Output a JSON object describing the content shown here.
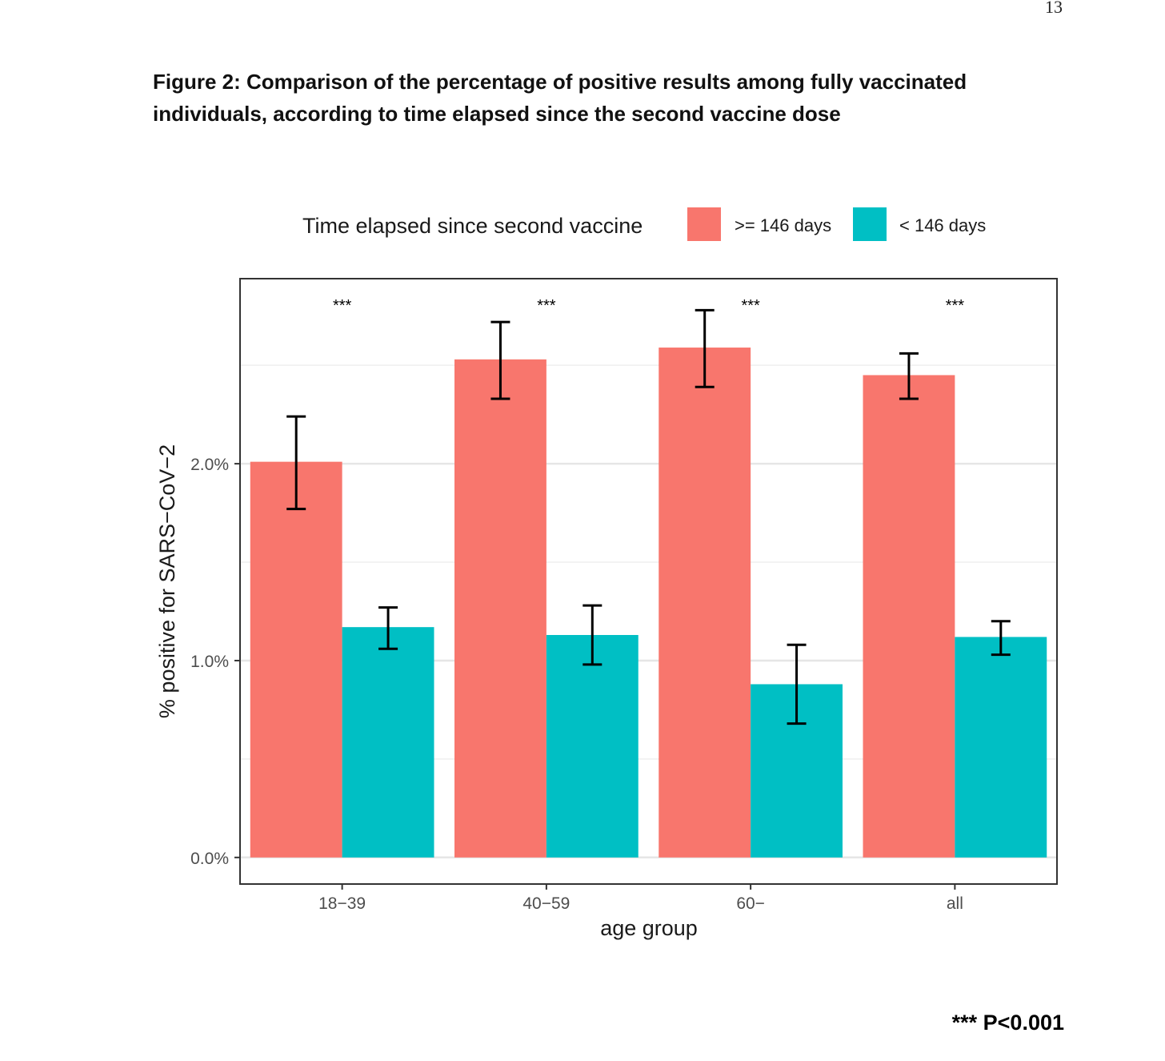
{
  "page": {
    "number": "13"
  },
  "figure": {
    "title": "Figure 2: Comparison of the percentage of positive results among fully vaccinated individuals, according to time elapsed since the second vaccine dose",
    "footnote": "*** P<0.001"
  },
  "chart_data": {
    "type": "bar",
    "title": "",
    "xlabel": "age group",
    "ylabel": "% positive for SARS−CoV−2",
    "categories": [
      "18−39",
      "40−59",
      "60−",
      "all"
    ],
    "legend": {
      "title": "Time elapsed since second vaccine",
      "position": "top"
    },
    "series": [
      {
        "name": ">= 146 days",
        "color": "#F8766D",
        "values": [
          2.01,
          2.53,
          2.59,
          2.45
        ],
        "err_low": [
          1.77,
          2.33,
          2.39,
          2.33
        ],
        "err_high": [
          2.24,
          2.72,
          2.78,
          2.56
        ]
      },
      {
        "name": "< 146 days",
        "color": "#00BFC4",
        "values": [
          1.17,
          1.13,
          0.88,
          1.12
        ],
        "err_low": [
          1.06,
          0.98,
          0.68,
          1.03
        ],
        "err_high": [
          1.27,
          1.28,
          1.08,
          1.2
        ]
      }
    ],
    "significance": [
      "***",
      "***",
      "***",
      "***"
    ],
    "yticks": [
      0,
      1,
      2
    ],
    "ytick_labels": [
      "0.0%",
      "1.0%",
      "2.0%"
    ],
    "ylim": [
      -0.135,
      2.94
    ],
    "grid": true
  }
}
